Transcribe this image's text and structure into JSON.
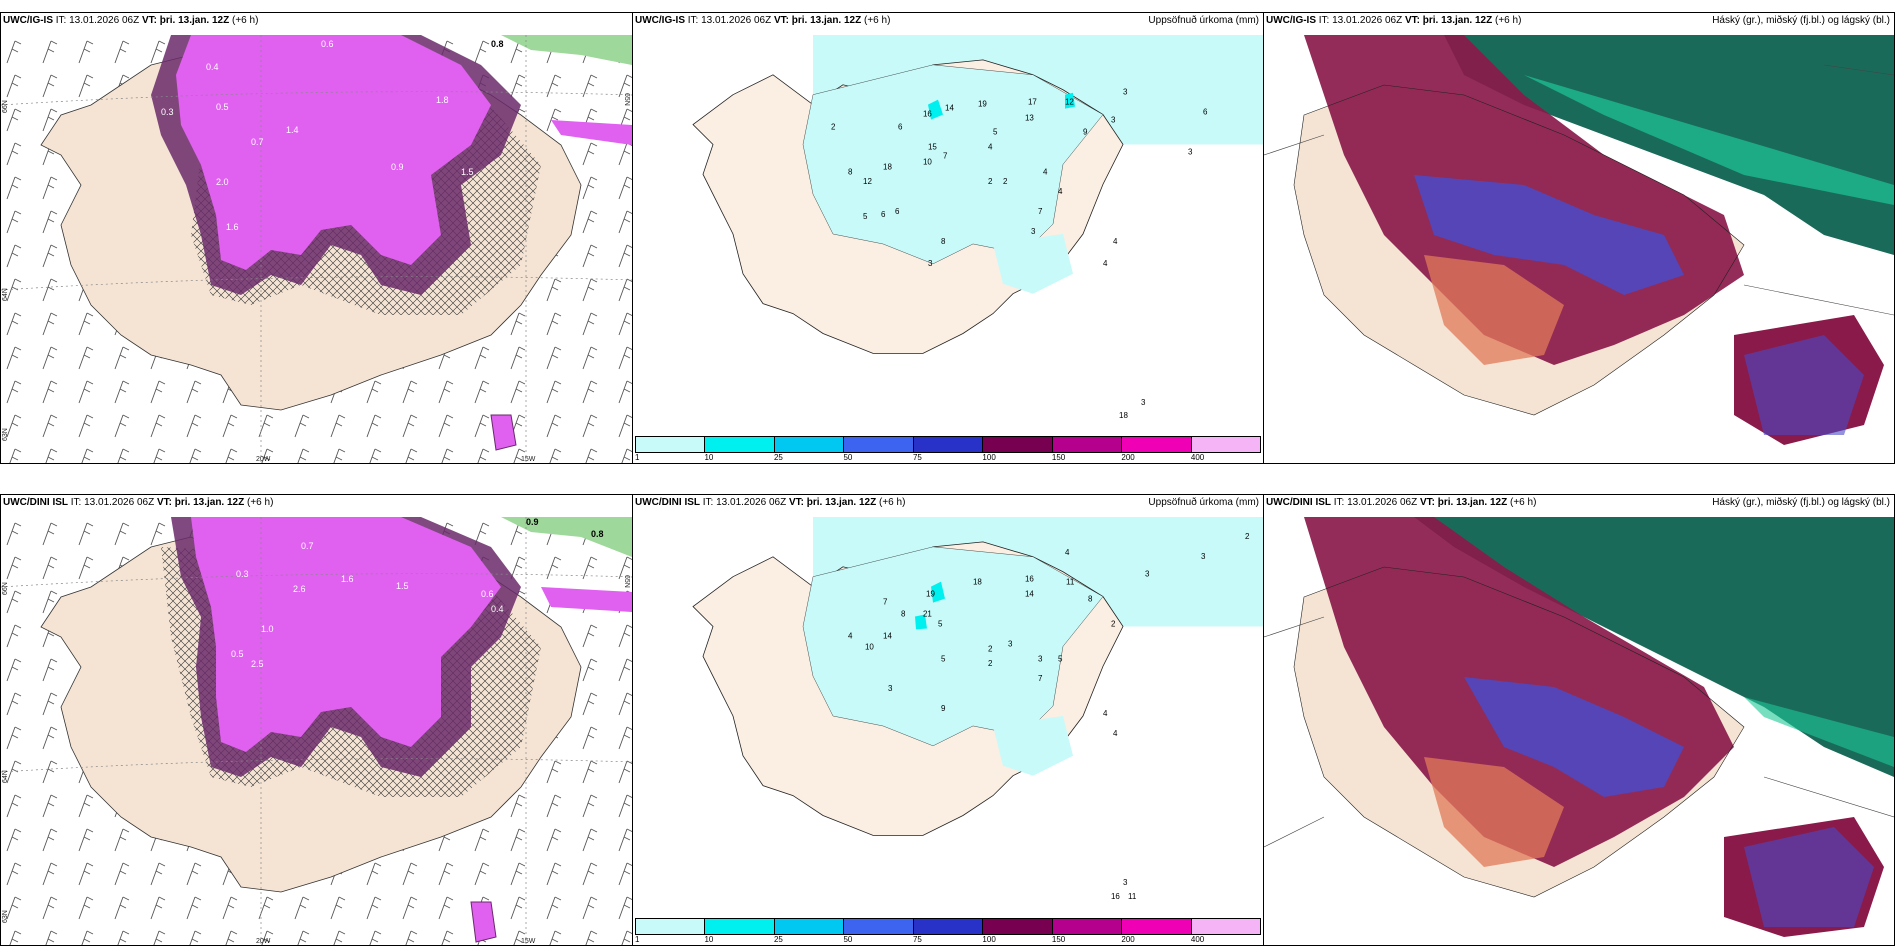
{
  "panels": [
    {
      "id": "top-left",
      "model": "UWC/IG-IS",
      "it_label": "IT:",
      "it": "13.01.2026 06Z",
      "vt_label": "VT:",
      "vt": "þri. 13.jan. 12Z",
      "lead": "(+6 h)",
      "right_title": "",
      "lat_labels": [
        "66N",
        "64N",
        "65N"
      ],
      "lon_labels": [
        "20W",
        "15W"
      ],
      "side_lat": "63N",
      "values": [
        "0.4",
        "0.6",
        "0.8",
        "0.3",
        "0.5",
        "1.4",
        "0.7",
        "2.0",
        "1.6",
        "1.8",
        "0.9",
        "1.5"
      ]
    },
    {
      "id": "top-middle",
      "model": "UWC/IG-IS",
      "it_label": "IT:",
      "it": "13.01.2026 06Z",
      "vt_label": "VT:",
      "vt": "þri. 13.jan. 12Z",
      "lead": "(+6 h)",
      "right_title": "Uppsöfnuð úrkoma (mm)",
      "values": [
        "2",
        "6",
        "16",
        "14",
        "19",
        "17",
        "13",
        "12",
        "9",
        "3",
        "3",
        "6",
        "5",
        "15",
        "10",
        "7",
        "18",
        "8",
        "12",
        "4",
        "2",
        "2",
        "4",
        "4",
        "7",
        "5",
        "6",
        "6",
        "8",
        "3",
        "3",
        "4",
        "4",
        "3",
        "18",
        "3"
      ]
    },
    {
      "id": "top-right",
      "model": "UWC/IG-IS",
      "it_label": "IT:",
      "it": "13.01.2026 06Z",
      "vt_label": "VT:",
      "vt": "þri. 13.jan. 12Z",
      "lead": "(+6 h)",
      "right_title": "Háský (gr.), miðský (fj.bl.) og lágský (bl.)"
    },
    {
      "id": "bottom-left",
      "model": "UWC/DINI ISL",
      "it_label": "IT:",
      "it": "13.01.2026 06Z",
      "vt_label": "VT:",
      "vt": "þri. 13.jan. 12Z",
      "lead": "(+6 h)",
      "right_title": "",
      "lat_labels": [
        "66N",
        "64N",
        "65N"
      ],
      "lon_labels": [
        "20W",
        "15W"
      ],
      "side_lat": "63N",
      "values": [
        "0.9",
        "0.8",
        "0.7",
        "0.3",
        "2.6",
        "1.6",
        "1.5",
        "0.6",
        "0.4",
        "1.0",
        "0.5",
        "2.5"
      ]
    },
    {
      "id": "bottom-middle",
      "model": "UWC/DINI ISL",
      "it_label": "IT:",
      "it": "13.01.2026 06Z",
      "vt_label": "VT:",
      "vt": "þri. 13.jan. 12Z",
      "lead": "(+6 h)",
      "right_title": "Uppsöfnuð úrkoma (mm)",
      "values": [
        "2",
        "3",
        "4",
        "3",
        "16",
        "11",
        "19",
        "18",
        "14",
        "8",
        "7",
        "8",
        "21",
        "5",
        "10",
        "14",
        "4",
        "2",
        "2",
        "3",
        "5",
        "3",
        "5",
        "9",
        "4",
        "7",
        "3",
        "2",
        "4",
        "3",
        "16",
        "11"
      ]
    },
    {
      "id": "bottom-right",
      "model": "UWC/DINI ISL",
      "it_label": "IT:",
      "it": "13.01.2026 06Z",
      "vt_label": "VT:",
      "vt": "þri. 13.jan. 12Z",
      "lead": "(+6 h)",
      "right_title": "Háský (gr.), miðský (fj.bl.) og lágský (bl.)"
    }
  ],
  "colorbar": {
    "labels": [
      "1",
      "10",
      "25",
      "50",
      "75",
      "100",
      "150",
      "200",
      "400"
    ],
    "colors": [
      "#c8fafa",
      "#00f0f0",
      "#00c8f0",
      "#3c64f0",
      "#2832c8",
      "#780050",
      "#b4008c",
      "#f000b4",
      "#f5b4f5"
    ]
  },
  "colors": {
    "land": "#f5e4d4",
    "precip_light": "#c8fafa",
    "snow_magenta": "#e060f0",
    "snow_dark": "#6a2a6a",
    "cloud_high": "#1a6a5a",
    "cloud_mid": "#8a1a4a",
    "cloud_low": "#4a4ac8"
  }
}
